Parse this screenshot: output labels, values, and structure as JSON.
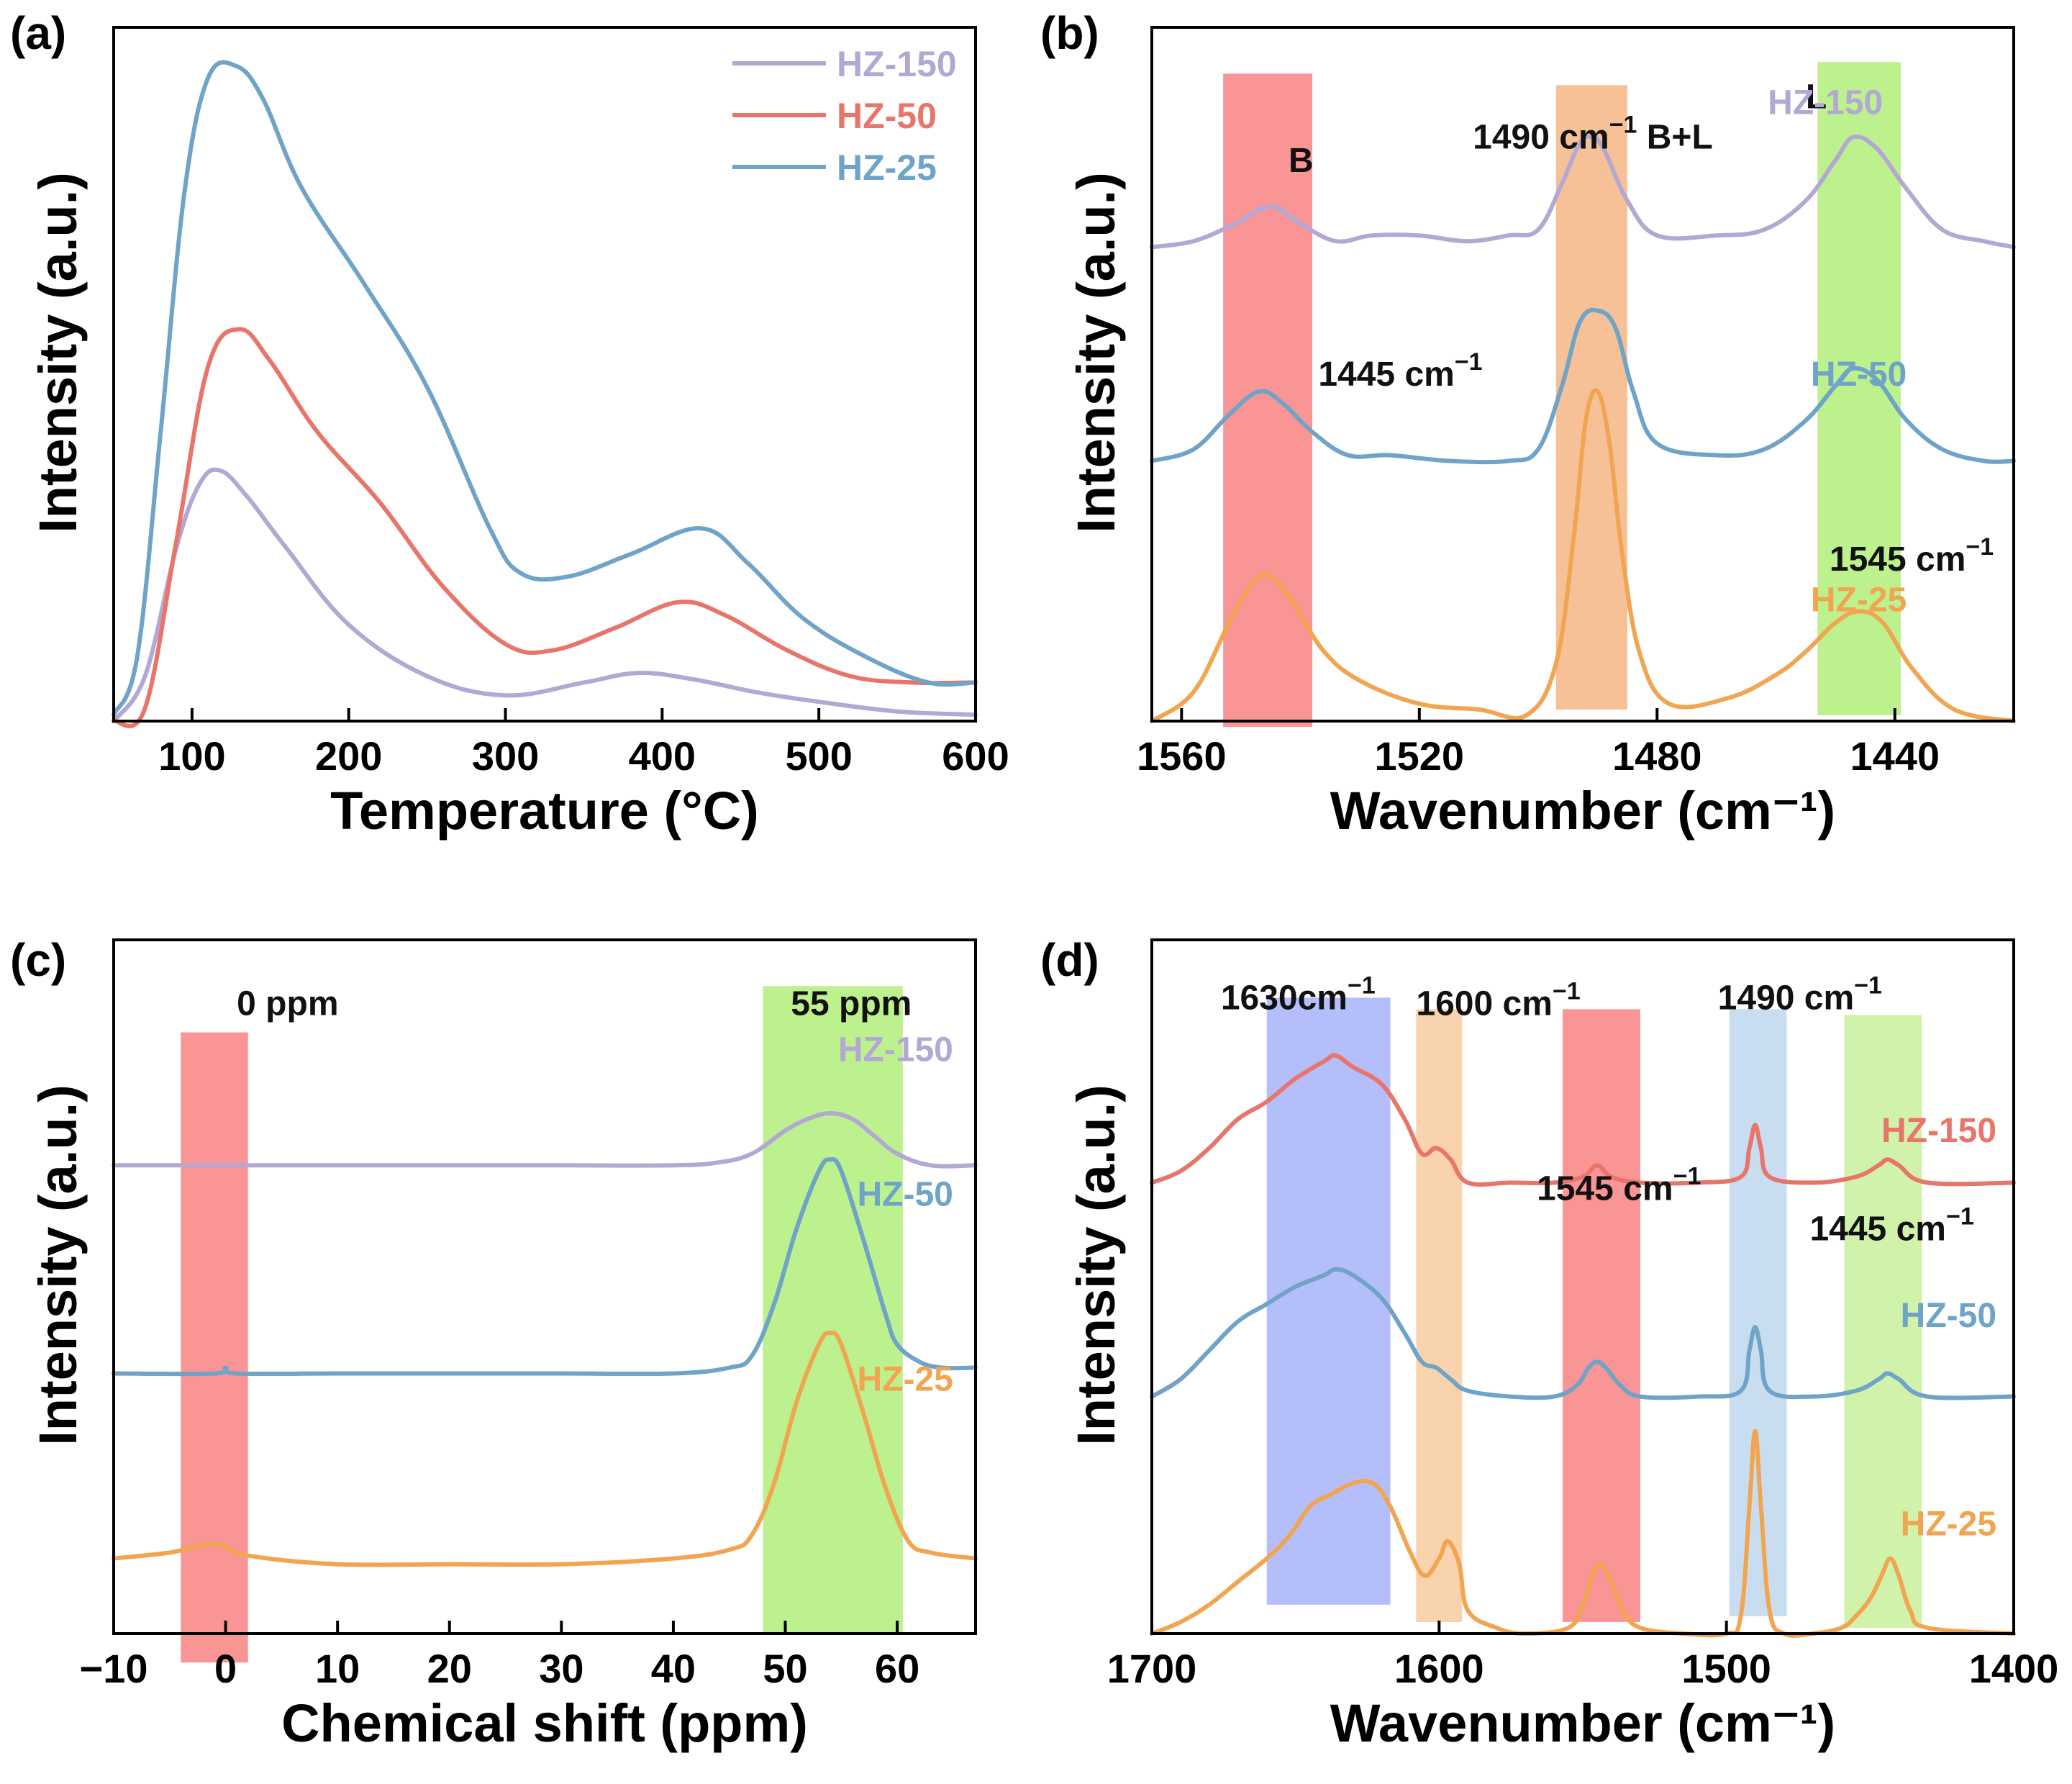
{
  "chart_data": [
    {
      "panel": "(a)",
      "type": "line",
      "xlabel": "Temperature (°C)",
      "ylabel": "Intensity (a.u.)",
      "xlim": [
        50,
        600
      ],
      "ylim": [
        0,
        1.08
      ],
      "xticks": [
        100,
        200,
        300,
        400,
        500,
        600
      ],
      "xtick_labels": [
        "100",
        "200",
        "300",
        "400",
        "500",
        "600"
      ],
      "legend": {
        "placement": "top-right",
        "entries": [
          "HZ-150",
          "HZ-50",
          "HZ-25"
        ]
      },
      "series": [
        {
          "name": "HZ-150",
          "color": "#b3a8d4",
          "x": [
            50,
            70,
            90,
            105,
            118,
            135,
            160,
            200,
            250,
            300,
            350,
            385,
            420,
            460,
            500,
            550,
            600
          ],
          "y": [
            0.0,
            0.07,
            0.27,
            0.37,
            0.39,
            0.35,
            0.27,
            0.15,
            0.07,
            0.04,
            0.06,
            0.075,
            0.065,
            0.045,
            0.03,
            0.015,
            0.01
          ]
        },
        {
          "name": "HZ-50",
          "color": "#e8756a",
          "x": [
            50,
            70,
            90,
            110,
            130,
            150,
            180,
            220,
            260,
            300,
            330,
            370,
            410,
            440,
            480,
            520,
            560,
            600
          ],
          "y": [
            0.0,
            0.02,
            0.28,
            0.55,
            0.61,
            0.56,
            0.45,
            0.34,
            0.21,
            0.12,
            0.11,
            0.145,
            0.185,
            0.165,
            0.11,
            0.07,
            0.06,
            0.06
          ]
        },
        {
          "name": "HZ-25",
          "color": "#6fa3c8",
          "x": [
            50,
            65,
            80,
            95,
            110,
            128,
            145,
            170,
            210,
            250,
            290,
            310,
            340,
            380,
            425,
            455,
            490,
            530,
            570,
            600
          ],
          "y": [
            0.01,
            0.1,
            0.45,
            0.82,
            1.0,
            1.02,
            0.97,
            0.83,
            0.68,
            0.52,
            0.3,
            0.23,
            0.225,
            0.26,
            0.3,
            0.245,
            0.16,
            0.1,
            0.06,
            0.06
          ]
        }
      ]
    },
    {
      "panel": "(b)",
      "type": "line",
      "xlabel": "Wavenumber (cm⁻¹)",
      "ylabel": "Intensity (a.u.)",
      "xlim": [
        1565,
        1420
      ],
      "ylim": [
        0,
        1.2
      ],
      "xticks": [
        1560,
        1520,
        1480,
        1440
      ],
      "xtick_labels": [
        "1560",
        "1520",
        "1480",
        "1440"
      ],
      "bands": [
        {
          "from": 1553,
          "to": 1538,
          "color": "#f98282",
          "yrange": [
            -0.01,
            1.12
          ]
        },
        {
          "from": 1497,
          "to": 1485,
          "color": "#f4b684",
          "yrange": [
            0.02,
            1.1
          ]
        },
        {
          "from": 1453,
          "to": 1439,
          "color": "#b2ee7a",
          "yrange": [
            0.01,
            1.14
          ]
        }
      ],
      "annotations": [
        {
          "text": "B",
          "x": 1542,
          "y": 0.95
        },
        {
          "text": "1490 cm",
          "sup": "−1",
          "after": " B+L",
          "x": 1511,
          "y": 0.99
        },
        {
          "text": "L",
          "x": 1455,
          "y": 1.06
        },
        {
          "text": "1445 cm",
          "sup": "−1",
          "x": 1537,
          "y": 0.58
        },
        {
          "text": "1545 cm",
          "sup": "−1",
          "x": 1451,
          "y": 0.26
        }
      ],
      "series": [
        {
          "name": "HZ-150",
          "color": "#b3a8d4",
          "label_at": [
            1442,
            1.05
          ],
          "x": [
            1565,
            1558,
            1551,
            1545,
            1540,
            1534,
            1528,
            1520,
            1512,
            1505,
            1500,
            1496,
            1493,
            1491,
            1489,
            1485,
            1480,
            1470,
            1462,
            1455,
            1450,
            1447,
            1443,
            1438,
            1432,
            1425,
            1420
          ],
          "y": [
            0.82,
            0.83,
            0.86,
            0.89,
            0.86,
            0.83,
            0.84,
            0.84,
            0.83,
            0.84,
            0.85,
            0.93,
            1.0,
            1.01,
            0.99,
            0.9,
            0.84,
            0.84,
            0.85,
            0.9,
            0.97,
            1.01,
            0.99,
            0.92,
            0.85,
            0.83,
            0.82
          ]
        },
        {
          "name": "HZ-50",
          "color": "#6fa3c8",
          "label_at": [
            1438,
            0.58
          ],
          "x": [
            1565,
            1558,
            1552,
            1547,
            1543,
            1538,
            1532,
            1525,
            1515,
            1505,
            1500,
            1496,
            1493,
            1490,
            1487,
            1484,
            1480,
            1470,
            1462,
            1455,
            1450,
            1447,
            1443,
            1438,
            1432,
            1425,
            1420
          ],
          "y": [
            0.45,
            0.47,
            0.53,
            0.57,
            0.55,
            0.5,
            0.46,
            0.46,
            0.45,
            0.45,
            0.47,
            0.58,
            0.69,
            0.71,
            0.68,
            0.57,
            0.48,
            0.46,
            0.47,
            0.52,
            0.58,
            0.61,
            0.59,
            0.52,
            0.47,
            0.45,
            0.45
          ]
        },
        {
          "name": "HZ-25",
          "color": "#f2a550",
          "label_at": [
            1438,
            0.19
          ],
          "x": [
            1565,
            1558,
            1552,
            1548,
            1545,
            1541,
            1536,
            1530,
            1520,
            1510,
            1502,
            1497,
            1494,
            1492,
            1490,
            1488,
            1486,
            1483,
            1478,
            1468,
            1460,
            1455,
            1450,
            1446,
            1442,
            1437,
            1430,
            1420
          ],
          "y": [
            0.0,
            0.05,
            0.17,
            0.24,
            0.25,
            0.2,
            0.12,
            0.07,
            0.03,
            0.02,
            0.01,
            0.1,
            0.32,
            0.52,
            0.57,
            0.48,
            0.3,
            0.12,
            0.03,
            0.04,
            0.08,
            0.12,
            0.17,
            0.19,
            0.17,
            0.09,
            0.02,
            0.0
          ]
        }
      ]
    },
    {
      "panel": "(c)",
      "type": "line",
      "xlabel": "Chemical shift (ppm)",
      "ylabel": "Intensity (a.u.)",
      "xlim": [
        -10,
        67
      ],
      "ylim": [
        0,
        1.2
      ],
      "xticks": [
        -10,
        0,
        10,
        20,
        30,
        40,
        50,
        60
      ],
      "xtick_labels": [
        "−10",
        "0",
        "10",
        "20",
        "30",
        "40",
        "50",
        "60"
      ],
      "bands": [
        {
          "from": -4,
          "to": 2,
          "color": "#f98282",
          "yrange": [
            -0.05,
            1.04
          ]
        },
        {
          "from": 48,
          "to": 60.5,
          "color": "#b2ee7a",
          "yrange": [
            0.0,
            1.12
          ]
        }
      ],
      "annotations": [
        {
          "text": "0 ppm",
          "x": 1,
          "y": 1.07
        },
        {
          "text": "55 ppm",
          "x": 50.5,
          "y": 1.07
        }
      ],
      "series": [
        {
          "name": "HZ-150",
          "color": "#b3a8d4",
          "label_at": [
            65,
            0.99
          ],
          "x": [
            -10,
            0,
            10,
            20,
            30,
            40,
            44,
            47,
            50,
            52,
            54,
            56,
            58,
            60,
            63,
            67
          ],
          "y": [
            0.81,
            0.81,
            0.81,
            0.81,
            0.81,
            0.81,
            0.815,
            0.83,
            0.87,
            0.89,
            0.9,
            0.89,
            0.86,
            0.83,
            0.81,
            0.81
          ]
        },
        {
          "name": "HZ-50",
          "color": "#6fa3c8",
          "label_at": [
            65,
            0.74
          ],
          "x": [
            -10,
            -1,
            0,
            1,
            10,
            20,
            30,
            40,
            45,
            47,
            49,
            51,
            53,
            54,
            55,
            57,
            59,
            60,
            62,
            64,
            67
          ],
          "y": [
            0.45,
            0.45,
            0.46,
            0.45,
            0.45,
            0.45,
            0.45,
            0.45,
            0.46,
            0.48,
            0.57,
            0.7,
            0.8,
            0.82,
            0.8,
            0.68,
            0.55,
            0.5,
            0.47,
            0.46,
            0.46
          ]
        },
        {
          "name": "HZ-25",
          "color": "#f2a550",
          "label_at": [
            65,
            0.42
          ],
          "x": [
            -10,
            -5,
            -1,
            2,
            10,
            20,
            30,
            40,
            45,
            47,
            49,
            51,
            53,
            54,
            55,
            57,
            59,
            61,
            63,
            67
          ],
          "y": [
            0.13,
            0.14,
            0.155,
            0.135,
            0.12,
            0.12,
            0.12,
            0.13,
            0.145,
            0.17,
            0.26,
            0.4,
            0.5,
            0.52,
            0.5,
            0.38,
            0.25,
            0.16,
            0.14,
            0.13
          ]
        }
      ]
    },
    {
      "panel": "(d)",
      "type": "line",
      "xlabel": "Wavenumber (cm⁻¹)",
      "ylabel": "Intensity (a.u.)",
      "xlim": [
        1700,
        1400
      ],
      "ylim": [
        0,
        1.2
      ],
      "xticks": [
        1700,
        1600,
        1500,
        1400
      ],
      "xtick_labels": [
        "1700",
        "1600",
        "1500",
        "1400"
      ],
      "bands": [
        {
          "from": 1660,
          "to": 1617,
          "color": "#a7b3fa",
          "yrange": [
            0.05,
            1.1
          ]
        },
        {
          "from": 1608,
          "to": 1592,
          "color": "#f8cba0",
          "yrange": [
            0.02,
            1.08
          ]
        },
        {
          "from": 1557,
          "to": 1530,
          "color": "#f98282",
          "yrange": [
            0.02,
            1.08
          ]
        },
        {
          "from": 1499,
          "to": 1479,
          "color": "#bed8ed",
          "yrange": [
            0.03,
            1.08
          ]
        },
        {
          "from": 1459,
          "to": 1432,
          "color": "#c8f09c",
          "yrange": [
            0.01,
            1.07
          ]
        }
      ],
      "annotations": [
        {
          "text": "1630cm",
          "sup": "−1",
          "x": 1676,
          "y": 1.08
        },
        {
          "text": "1600 cm",
          "sup": "−1",
          "x": 1608,
          "y": 1.07
        },
        {
          "text": "1490 cm",
          "sup": "−1",
          "x": 1503,
          "y": 1.08
        },
        {
          "text": "1545 cm",
          "sup": "−1",
          "x": 1566,
          "y": 0.75
        },
        {
          "text": "1445 cm",
          "sup": "−1",
          "x": 1471,
          "y": 0.68
        }
      ],
      "series": [
        {
          "name": "HZ-150",
          "color": "#e8756a",
          "label_at": [
            1406,
            0.85
          ],
          "x": [
            1700,
            1690,
            1680,
            1670,
            1660,
            1650,
            1640,
            1636,
            1630,
            1620,
            1612,
            1606,
            1601,
            1596,
            1590,
            1575,
            1560,
            1550,
            1545,
            1540,
            1530,
            1510,
            1495,
            1492,
            1490,
            1488,
            1485,
            1470,
            1455,
            1447,
            1444,
            1440,
            1430,
            1400
          ],
          "y": [
            0.78,
            0.8,
            0.84,
            0.89,
            0.92,
            0.96,
            0.99,
            1.0,
            0.98,
            0.95,
            0.89,
            0.83,
            0.84,
            0.82,
            0.78,
            0.78,
            0.78,
            0.79,
            0.81,
            0.79,
            0.78,
            0.78,
            0.79,
            0.84,
            0.88,
            0.84,
            0.79,
            0.78,
            0.79,
            0.81,
            0.82,
            0.81,
            0.78,
            0.78
          ]
        },
        {
          "name": "HZ-50",
          "color": "#6fa3c8",
          "label_at": [
            1406,
            0.53
          ],
          "x": [
            1700,
            1690,
            1680,
            1670,
            1660,
            1650,
            1640,
            1636,
            1630,
            1620,
            1612,
            1606,
            1601,
            1596,
            1590,
            1575,
            1560,
            1552,
            1548,
            1545,
            1542,
            1537,
            1530,
            1510,
            1495,
            1492,
            1490,
            1488,
            1485,
            1470,
            1455,
            1447,
            1444,
            1440,
            1430,
            1400
          ],
          "y": [
            0.41,
            0.44,
            0.49,
            0.54,
            0.57,
            0.6,
            0.62,
            0.63,
            0.62,
            0.58,
            0.52,
            0.47,
            0.46,
            0.44,
            0.42,
            0.41,
            0.41,
            0.43,
            0.46,
            0.47,
            0.46,
            0.43,
            0.41,
            0.41,
            0.42,
            0.49,
            0.53,
            0.49,
            0.42,
            0.41,
            0.42,
            0.44,
            0.45,
            0.44,
            0.41,
            0.41
          ]
        },
        {
          "name": "HZ-25",
          "color": "#f2a550",
          "label_at": [
            1406,
            0.17
          ],
          "x": [
            1700,
            1690,
            1680,
            1670,
            1660,
            1652,
            1645,
            1638,
            1630,
            1623,
            1617,
            1610,
            1605,
            1600,
            1597,
            1593,
            1590,
            1580,
            1570,
            1555,
            1550,
            1546,
            1544,
            1541,
            1536,
            1530,
            1515,
            1500,
            1495,
            1492,
            1490,
            1488,
            1485,
            1480,
            1470,
            1460,
            1455,
            1450,
            1446,
            1443,
            1440,
            1436,
            1430,
            1400
          ],
          "y": [
            0.0,
            0.02,
            0.05,
            0.09,
            0.13,
            0.17,
            0.22,
            0.24,
            0.26,
            0.26,
            0.22,
            0.14,
            0.1,
            0.13,
            0.16,
            0.12,
            0.04,
            0.01,
            0.0,
            0.01,
            0.05,
            0.11,
            0.12,
            0.1,
            0.04,
            0.01,
            0.0,
            0.0,
            0.03,
            0.22,
            0.35,
            0.22,
            0.04,
            0.0,
            0.0,
            0.01,
            0.03,
            0.06,
            0.1,
            0.13,
            0.1,
            0.04,
            0.01,
            0.0
          ]
        }
      ]
    }
  ]
}
